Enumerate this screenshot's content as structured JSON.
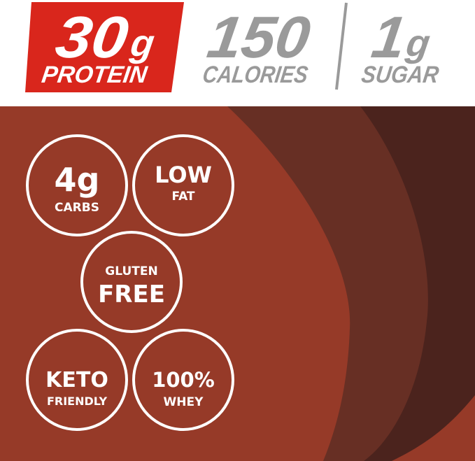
{
  "header": {
    "protein": {
      "value": "30",
      "unit": "g",
      "label": "PROTEIN"
    },
    "calories": {
      "value": "150",
      "label": "CALORIES"
    },
    "sugar": {
      "value": "1",
      "unit": "g",
      "label": "SUGAR"
    }
  },
  "badges": [
    {
      "big": "4g",
      "small": "CARBS"
    },
    {
      "big": "LOW",
      "small": "FAT"
    },
    {
      "small": "GLUTEN",
      "big": "FREE"
    },
    {
      "big": "KETO",
      "small": "FRIENDLY"
    },
    {
      "big": "100%",
      "small": "WHEY"
    }
  ],
  "colors": {
    "red": "#d9261c",
    "gray": "#9a9a9a",
    "brown_light": "#963a28",
    "brown_mid": "#672f24",
    "brown_dark": "#4b231d"
  }
}
